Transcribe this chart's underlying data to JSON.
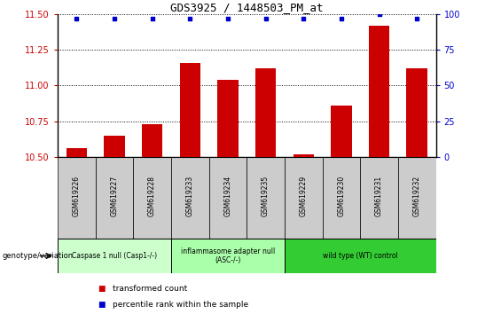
{
  "title": "GDS3925 / 1448503_PM_at",
  "samples": [
    "GSM619226",
    "GSM619227",
    "GSM619228",
    "GSM619233",
    "GSM619234",
    "GSM619235",
    "GSM619229",
    "GSM619230",
    "GSM619231",
    "GSM619232"
  ],
  "red_values": [
    10.56,
    10.65,
    10.73,
    11.16,
    11.04,
    11.12,
    10.52,
    10.86,
    11.42,
    11.12
  ],
  "blue_values": [
    97,
    97,
    97,
    97,
    97,
    97,
    97,
    97,
    100,
    97
  ],
  "ylim_left": [
    10.5,
    11.5
  ],
  "ylim_right": [
    0,
    100
  ],
  "yticks_left": [
    10.5,
    10.75,
    11.0,
    11.25,
    11.5
  ],
  "yticks_right": [
    0,
    25,
    50,
    75,
    100
  ],
  "groups": [
    {
      "label": "Caspase 1 null (Casp1-/-)",
      "start": 0,
      "end": 3,
      "color": "#ccffcc"
    },
    {
      "label": "inflammasome adapter null\n(ASC-/-)",
      "start": 3,
      "end": 6,
      "color": "#aaffaa"
    },
    {
      "label": "wild type (WT) control",
      "start": 6,
      "end": 10,
      "color": "#33cc33"
    }
  ],
  "bar_color": "#cc0000",
  "dot_color": "#0000cc",
  "bar_bottom": 10.5,
  "yaxis_left_color": "#cc0000",
  "yaxis_right_color": "#0000cc",
  "grid_color": "#000000",
  "legend_red_label": "transformed count",
  "legend_blue_label": "percentile rank within the sample",
  "genotype_label": "genotype/variation",
  "background_color": "#ffffff",
  "tick_area_bg": "#cccccc"
}
